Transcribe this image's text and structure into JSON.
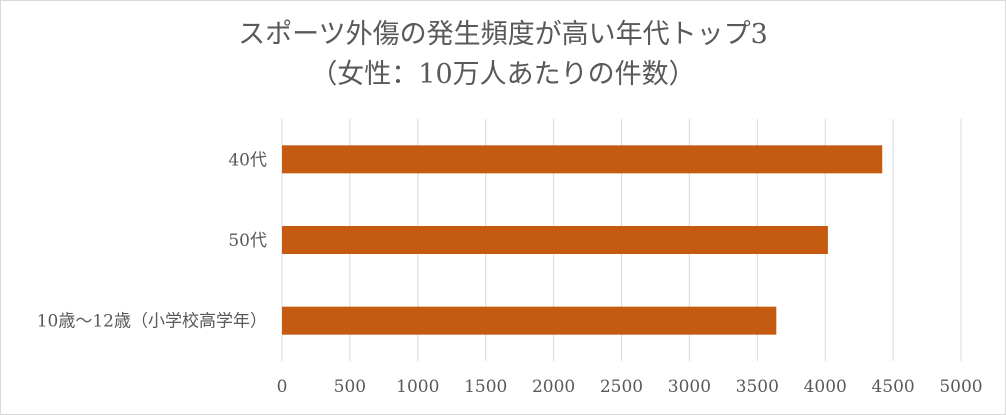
{
  "chart_data": {
    "type": "bar",
    "orientation": "horizontal",
    "title": "スポーツ外傷の発生頻度が高い年代トップ3",
    "subtitle": "（女性：10万人あたりの件数）",
    "categories": [
      "40代",
      "50代",
      "10歳～12歳（小学校高学年）"
    ],
    "values": [
      4420,
      4020,
      3640
    ],
    "xlim": [
      0,
      5000
    ],
    "xticks": [
      "0",
      "500",
      "1000",
      "1500",
      "2000",
      "2500",
      "3000",
      "3500",
      "4000",
      "4500",
      "5000"
    ],
    "grid": true,
    "bar_color": "#c55a11",
    "grid_color": "#d9d9d9"
  }
}
